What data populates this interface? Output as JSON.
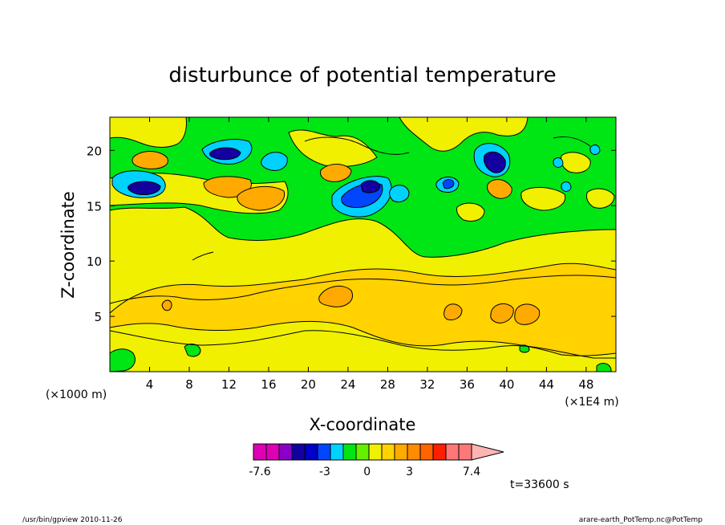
{
  "chart_data": {
    "type": "heatmap",
    "title": "disturbunce of potential temperature",
    "xlabel": "X-coordinate",
    "ylabel": "Z-coordinate",
    "x_unit_left": "(×1000 m)",
    "x_unit_right": "(×1E4 m)",
    "xlim": [
      0,
      51
    ],
    "ylim": [
      0,
      23
    ],
    "x_ticks": [
      4,
      8,
      12,
      16,
      20,
      24,
      28,
      32,
      36,
      40,
      44,
      48
    ],
    "y_ticks": [
      5,
      10,
      15,
      20
    ],
    "time_label": "t=33600 s",
    "footer_left": "/usr/bin/gpview  2010-11-26",
    "footer_right": "arare-earth_PotTemp.nc@PotTemp",
    "colorbar": {
      "labels": [
        {
          "value": -7.6,
          "text": "-7.6"
        },
        {
          "value": -3,
          "text": "-3"
        },
        {
          "value": 0,
          "text": "0"
        },
        {
          "value": 3,
          "text": "3"
        },
        {
          "value": 7.4,
          "text": "7.4"
        }
      ],
      "colors": [
        "#de00b4",
        "#de00b4",
        "#8a00c8",
        "#1400a0",
        "#0000c8",
        "#0046ff",
        "#00d2ff",
        "#00e614",
        "#64f000",
        "#f0f000",
        "#ffd200",
        "#ffaa00",
        "#ff8c00",
        "#ff6400",
        "#ff1e00",
        "#ff7878",
        "#ff7878",
        "#ffb4b4"
      ],
      "segment_weights": [
        1,
        1,
        1,
        1,
        1,
        1,
        1,
        1,
        1,
        1,
        1,
        1,
        1,
        1,
        1,
        1,
        1,
        1
      ]
    },
    "field_bands": [
      {
        "level": "yellow",
        "color": "#f0f000"
      },
      {
        "level": "light-orange",
        "color": "#ffd200"
      },
      {
        "level": "orange",
        "color": "#ffaa00"
      },
      {
        "level": "green",
        "color": "#00e614"
      },
      {
        "level": "light-green",
        "color": "#64f000"
      },
      {
        "level": "cyan",
        "color": "#00d2ff"
      },
      {
        "level": "blue",
        "color": "#0046ff"
      },
      {
        "level": "dark-blue",
        "color": "#1400a0"
      },
      {
        "level": "dark-orange",
        "color": "#ff8c00"
      }
    ]
  }
}
